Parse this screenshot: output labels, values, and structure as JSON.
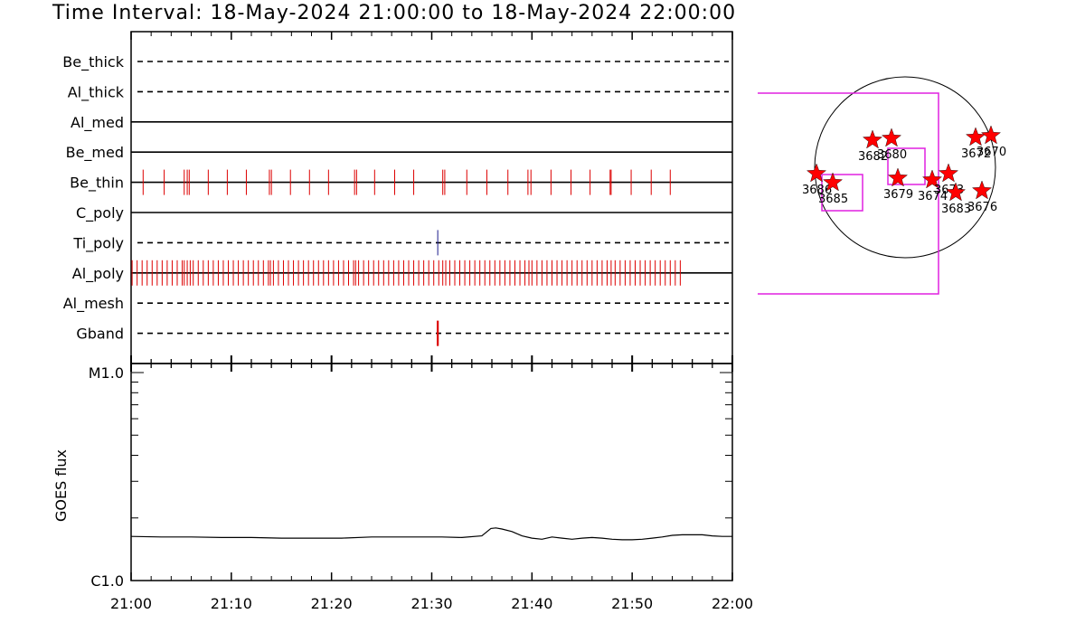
{
  "title": "Time Interval: 18-May-2024 21:00:00 to 18-May-2024 22:00:00",
  "colors": {
    "frame": "#000000",
    "event_red": "#dd0000",
    "event_blue": "#1a1a8c",
    "fov_magenta": "#e020e0",
    "star_red": "#ff0000"
  },
  "chart_data": [
    {
      "type": "event_raster",
      "channels": [
        {
          "name": "Be_thick",
          "line": "dashed",
          "events": []
        },
        {
          "name": "Al_thick",
          "line": "dashed",
          "events": []
        },
        {
          "name": "Al_med",
          "line": "solid",
          "events": []
        },
        {
          "name": "Be_med",
          "line": "solid",
          "events": []
        },
        {
          "name": "Be_thin",
          "line": "solid",
          "event_color": "event_red",
          "events": [
            1.2,
            3.3,
            5.3,
            5.6,
            5.8,
            7.7,
            9.6,
            11.5,
            13.8,
            14.0,
            15.9,
            17.8,
            19.7,
            22.3,
            22.5,
            24.3,
            26.3,
            28.2,
            31.1,
            31.3,
            33.5,
            35.5,
            37.6,
            39.6,
            39.9,
            41.9,
            43.9,
            45.8,
            47.8,
            47.9,
            49.9,
            51.9,
            53.8
          ]
        },
        {
          "name": "C_poly",
          "line": "solid",
          "events": []
        },
        {
          "name": "Ti_poly",
          "line": "dashed",
          "event_color": "event_blue",
          "events": [
            30.6
          ]
        },
        {
          "name": "Al_poly",
          "line": "solid",
          "event_color": "event_red",
          "events": [
            0.1,
            0.6,
            1.1,
            1.6,
            2.1,
            2.6,
            3.1,
            3.6,
            4.1,
            4.6,
            5.1,
            5.3,
            5.6,
            5.9,
            6.2,
            6.7,
            7.2,
            7.7,
            8.2,
            8.7,
            9.2,
            9.7,
            10.2,
            10.7,
            11.2,
            11.7,
            12.2,
            12.7,
            13.2,
            13.7,
            13.9,
            14.2,
            14.7,
            15.2,
            15.7,
            16.2,
            16.7,
            17.2,
            17.7,
            18.2,
            18.7,
            19.2,
            19.7,
            20.2,
            20.7,
            21.2,
            21.7,
            22.2,
            22.4,
            22.7,
            23.2,
            23.7,
            24.2,
            24.7,
            25.2,
            25.7,
            26.2,
            26.7,
            27.2,
            27.7,
            28.2,
            28.7,
            29.2,
            29.7,
            30.2,
            30.7,
            31.1,
            31.4,
            31.8,
            32.3,
            32.8,
            33.3,
            33.8,
            34.3,
            34.8,
            35.3,
            35.8,
            36.3,
            36.8,
            37.3,
            37.8,
            38.3,
            38.8,
            39.3,
            39.7,
            40.0,
            40.5,
            41.0,
            41.5,
            42.0,
            42.5,
            43.0,
            43.5,
            44.0,
            44.5,
            45.0,
            45.5,
            46.0,
            46.5,
            47.0,
            47.5,
            47.9,
            48.3,
            48.8,
            49.3,
            49.8,
            50.3,
            50.8,
            51.3,
            51.8,
            52.3,
            52.8,
            53.3,
            53.8,
            54.3,
            54.8
          ]
        },
        {
          "name": "Al_mesh",
          "line": "dashed",
          "events": []
        },
        {
          "name": "Gband",
          "line": "dashed",
          "event_color": "event_red",
          "event_style": "thick",
          "events": [
            30.6
          ]
        }
      ]
    },
    {
      "type": "line",
      "ylabel": "GOES flux",
      "x_unit": "minutes after 21:00",
      "xlim": [
        0,
        60
      ],
      "x_tick_labels": [
        "21:00",
        "21:10",
        "21:20",
        "21:30",
        "21:40",
        "21:50",
        "22:00"
      ],
      "y_scale": "log",
      "ylim": [
        1e-06,
        1e-05
      ],
      "y_tick_labels": [
        "C1.0",
        "M1.0"
      ],
      "series": [
        {
          "values_x": [
            0,
            3,
            6,
            9,
            12,
            15,
            18,
            21,
            24,
            27,
            29,
            31,
            33,
            35,
            35.9,
            36.4,
            37,
            38,
            39,
            40,
            41,
            42,
            43,
            44,
            45,
            46,
            47,
            48,
            49,
            50,
            51,
            52,
            53,
            54,
            55,
            56,
            57,
            58,
            59,
            60
          ],
          "values_y": [
            1.63e-06,
            1.62e-06,
            1.62e-06,
            1.61e-06,
            1.61e-06,
            1.6e-06,
            1.6e-06,
            1.6e-06,
            1.62e-06,
            1.62e-06,
            1.62e-06,
            1.62e-06,
            1.61e-06,
            1.64e-06,
            1.78e-06,
            1.79e-06,
            1.77e-06,
            1.72e-06,
            1.64e-06,
            1.6e-06,
            1.58e-06,
            1.62e-06,
            1.6e-06,
            1.58e-06,
            1.6e-06,
            1.61e-06,
            1.6e-06,
            1.58e-06,
            1.57e-06,
            1.57e-06,
            1.58e-06,
            1.6e-06,
            1.62e-06,
            1.65e-06,
            1.66e-06,
            1.66e-06,
            1.66e-06,
            1.64e-06,
            1.63e-06,
            1.63e-06
          ]
        }
      ]
    },
    {
      "type": "scatter",
      "description": "solar disk map with active regions",
      "points": [
        {
          "label": "3682",
          "pos": [
            -0.36,
            -0.3
          ]
        },
        {
          "label": "3680",
          "pos": [
            -0.15,
            -0.32
          ]
        },
        {
          "label": "3679",
          "pos": [
            -0.08,
            0.12
          ]
        },
        {
          "label": "3674",
          "pos": [
            0.3,
            0.14
          ]
        },
        {
          "label": "3673",
          "pos": [
            0.48,
            0.07
          ]
        },
        {
          "label": "3683",
          "pos": [
            0.56,
            0.28
          ]
        },
        {
          "label": "3672",
          "pos": [
            0.78,
            -0.33
          ]
        },
        {
          "label": "3670",
          "pos": [
            0.95,
            -0.35
          ]
        },
        {
          "label": "3676",
          "pos": [
            0.85,
            0.26
          ]
        },
        {
          "label": "3686",
          "pos": [
            -0.98,
            0.07
          ]
        },
        {
          "label": "3685",
          "pos": [
            -0.8,
            0.17
          ]
        }
      ]
    }
  ]
}
